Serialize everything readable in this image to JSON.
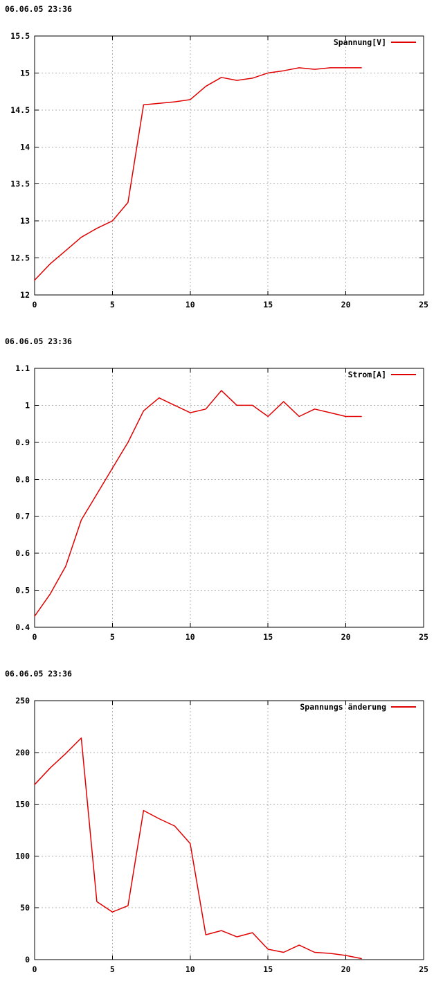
{
  "page": {
    "background": "#ffffff"
  },
  "colors": {
    "series": "#e00000",
    "grid": "#b0b0b0",
    "axis": "#000000",
    "text": "#000000"
  },
  "chart_data": [
    {
      "type": "line",
      "timestamp": "06.06.05 23:36",
      "legend": "Spannung[V]",
      "legend_position": "top-right",
      "grid": true,
      "xlim": [
        0,
        25
      ],
      "ylim": [
        12,
        15.5
      ],
      "xtick_values": [
        0,
        5,
        10,
        15,
        20,
        25
      ],
      "xtick_labels": [
        "0",
        "5",
        "10",
        "15",
        "20",
        "25"
      ],
      "ytick_values": [
        12,
        12.5,
        13,
        13.5,
        14,
        14.5,
        15,
        15.5
      ],
      "ytick_labels": [
        "12",
        "12.5",
        "13",
        "13.5",
        "14",
        "14.5",
        "15",
        "15.5"
      ],
      "x": [
        0,
        1,
        2,
        3,
        4,
        5,
        6,
        7,
        8,
        9,
        10,
        11,
        12,
        13,
        14,
        15,
        16,
        17,
        18,
        19,
        20,
        21
      ],
      "y": [
        12.2,
        12.42,
        12.6,
        12.78,
        12.9,
        13.0,
        13.25,
        14.57,
        14.59,
        14.61,
        14.64,
        14.82,
        14.94,
        14.9,
        14.93,
        15.0,
        15.03,
        15.07,
        15.05,
        15.07,
        15.07,
        15.07
      ]
    },
    {
      "type": "line",
      "timestamp": "06.06.05 23:36",
      "legend": "Strom[A]",
      "legend_position": "top-right",
      "grid": true,
      "xlim": [
        0,
        25
      ],
      "ylim": [
        0.4,
        1.1
      ],
      "xtick_values": [
        0,
        5,
        10,
        15,
        20,
        25
      ],
      "xtick_labels": [
        "0",
        "5",
        "10",
        "15",
        "20",
        "25"
      ],
      "ytick_values": [
        0.4,
        0.5,
        0.6,
        0.7,
        0.8,
        0.9,
        1.0,
        1.1
      ],
      "ytick_labels": [
        "0.4",
        "0.5",
        "0.6",
        "0.7",
        "0.8",
        "0.9",
        "1",
        "1.1"
      ],
      "x": [
        0,
        1,
        2,
        3,
        4,
        5,
        6,
        7,
        8,
        9,
        10,
        11,
        12,
        13,
        14,
        15,
        16,
        17,
        18,
        19,
        20,
        21
      ],
      "y": [
        0.43,
        0.49,
        0.565,
        0.69,
        0.76,
        0.83,
        0.9,
        0.985,
        1.02,
        1.0,
        0.98,
        0.99,
        1.04,
        1.0,
        1.0,
        0.97,
        1.01,
        0.97,
        0.99,
        0.98,
        0.97,
        0.97
      ]
    },
    {
      "type": "line",
      "timestamp": "06.06.05 23:36",
      "legend": "Spannungs änderung",
      "legend_position": "top-right",
      "grid": true,
      "xlim": [
        0,
        25
      ],
      "ylim": [
        0,
        250
      ],
      "xtick_values": [
        0,
        5,
        10,
        15,
        20,
        25
      ],
      "xtick_labels": [
        "0",
        "5",
        "10",
        "15",
        "20",
        "25"
      ],
      "ytick_values": [
        0,
        50,
        100,
        150,
        200,
        250
      ],
      "ytick_labels": [
        "0",
        "50",
        "100",
        "150",
        "200",
        "250"
      ],
      "x": [
        0,
        1,
        2,
        3,
        4,
        5,
        6,
        7,
        8,
        9,
        10,
        11,
        12,
        13,
        14,
        15,
        16,
        17,
        18,
        19,
        20,
        21
      ],
      "y": [
        169,
        185,
        199,
        214,
        56,
        46,
        52,
        144,
        136,
        129,
        112,
        24,
        28,
        22,
        26,
        10,
        7,
        14,
        7,
        6,
        4,
        1
      ]
    }
  ]
}
